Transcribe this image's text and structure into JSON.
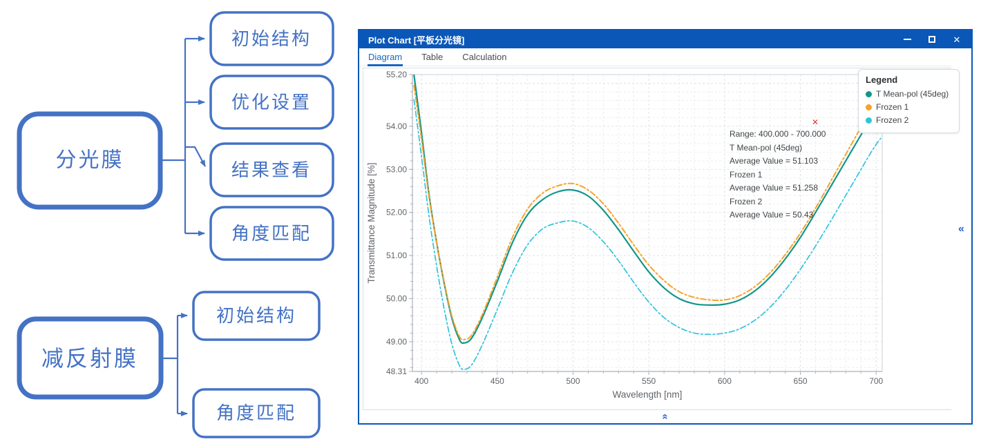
{
  "flowchart": {
    "groups": [
      {
        "root": "分光膜",
        "children": [
          "初始结构",
          "优化设置",
          "结果查看",
          "角度匹配"
        ]
      },
      {
        "root": "减反射膜",
        "children": [
          "初始结构",
          "角度匹配"
        ]
      }
    ],
    "accent_color": "#4472C4"
  },
  "window": {
    "title": "Plot Chart [平板分光镜]",
    "tabs": [
      {
        "label": "Diagram",
        "active": true
      },
      {
        "label": "Table",
        "active": false
      },
      {
        "label": "Calculation",
        "active": false
      }
    ],
    "title_bar_color": "#0B57B8",
    "active_tab_color": "#1565C0",
    "icons": {
      "close_glyph": "✕",
      "collapse_left_glyph": "«",
      "collapse_up_glyph": "«",
      "annotation_close_glyph": "✕"
    }
  },
  "chart_data": {
    "type": "line",
    "xlabel": "Wavelength [nm]",
    "ylabel": "Transmittance Magnitude [%]",
    "xlim": [
      394,
      704
    ],
    "ylim": [
      48.31,
      55.2
    ],
    "x_ticks": [
      400,
      450,
      500,
      550,
      600,
      650,
      700
    ],
    "x_minor_step": 10,
    "y_ticks": [
      48.31,
      49,
      50,
      51,
      52,
      53,
      54,
      55.2
    ],
    "y_tick_labels": [
      "48.31",
      "49.00",
      "50.00",
      "51.00",
      "52.00",
      "53.00",
      "54.00",
      "55.20"
    ],
    "y_minor_step": 0.2,
    "grid": "dashed",
    "legend": {
      "title": "Legend",
      "position": "top-right",
      "entries": [
        "T Mean-pol (45deg)",
        "Frozen 1",
        "Frozen 2"
      ]
    },
    "annotation": {
      "lines": [
        "Range: 400.000 - 700.000",
        "T Mean-pol (45deg)",
        "Average Value = 51.103",
        "Frozen 1",
        "Average Value = 51.258",
        "Frozen 2",
        "Average Value = 50.43"
      ],
      "close_color": "#E2362C"
    },
    "series": [
      {
        "name": "T Mean-pol (45deg)",
        "color": "#12968A",
        "style": "solid",
        "width": 2.2,
        "points": [
          [
            395,
            55.2
          ],
          [
            400,
            53.85
          ],
          [
            405,
            52.4
          ],
          [
            410,
            51.3
          ],
          [
            415,
            50.35
          ],
          [
            420,
            49.55
          ],
          [
            425,
            49.05
          ],
          [
            428,
            48.97
          ],
          [
            433,
            49.08
          ],
          [
            440,
            49.55
          ],
          [
            450,
            50.4
          ],
          [
            460,
            51.3
          ],
          [
            470,
            51.95
          ],
          [
            480,
            52.3
          ],
          [
            490,
            52.48
          ],
          [
            500,
            52.52
          ],
          [
            510,
            52.38
          ],
          [
            520,
            52.05
          ],
          [
            530,
            51.6
          ],
          [
            540,
            51.1
          ],
          [
            550,
            50.62
          ],
          [
            560,
            50.25
          ],
          [
            570,
            50.0
          ],
          [
            580,
            49.88
          ],
          [
            590,
            49.85
          ],
          [
            600,
            49.87
          ],
          [
            610,
            49.97
          ],
          [
            620,
            50.18
          ],
          [
            630,
            50.5
          ],
          [
            640,
            50.92
          ],
          [
            650,
            51.42
          ],
          [
            660,
            52.0
          ],
          [
            670,
            52.6
          ],
          [
            680,
            53.2
          ],
          [
            690,
            53.8
          ],
          [
            695,
            54.08
          ],
          [
            700,
            54.35
          ],
          [
            703,
            54.5
          ]
        ]
      },
      {
        "name": "Frozen 1",
        "color": "#F6A32B",
        "style": "dash-dot",
        "width": 2.0,
        "points": [
          [
            395,
            54.95
          ],
          [
            400,
            53.7
          ],
          [
            405,
            52.35
          ],
          [
            410,
            51.3
          ],
          [
            415,
            50.38
          ],
          [
            420,
            49.6
          ],
          [
            425,
            49.12
          ],
          [
            428,
            49.05
          ],
          [
            433,
            49.15
          ],
          [
            440,
            49.62
          ],
          [
            450,
            50.5
          ],
          [
            460,
            51.42
          ],
          [
            470,
            52.08
          ],
          [
            480,
            52.45
          ],
          [
            490,
            52.62
          ],
          [
            500,
            52.67
          ],
          [
            510,
            52.52
          ],
          [
            520,
            52.2
          ],
          [
            530,
            51.75
          ],
          [
            540,
            51.25
          ],
          [
            550,
            50.78
          ],
          [
            560,
            50.42
          ],
          [
            570,
            50.16
          ],
          [
            580,
            50.03
          ],
          [
            590,
            49.97
          ],
          [
            600,
            49.97
          ],
          [
            610,
            50.07
          ],
          [
            620,
            50.28
          ],
          [
            630,
            50.6
          ],
          [
            640,
            51.02
          ],
          [
            650,
            51.52
          ],
          [
            660,
            52.1
          ],
          [
            670,
            52.72
          ],
          [
            680,
            53.35
          ],
          [
            690,
            53.98
          ],
          [
            695,
            54.3
          ],
          [
            700,
            54.6
          ],
          [
            703,
            54.78
          ]
        ]
      },
      {
        "name": "Frozen 2",
        "color": "#30C3DC",
        "style": "dash-dot",
        "width": 1.7,
        "points": [
          [
            395,
            54.62
          ],
          [
            400,
            53.3
          ],
          [
            405,
            51.9
          ],
          [
            410,
            50.75
          ],
          [
            415,
            49.75
          ],
          [
            420,
            48.95
          ],
          [
            425,
            48.45
          ],
          [
            428,
            48.36
          ],
          [
            433,
            48.46
          ],
          [
            440,
            48.92
          ],
          [
            450,
            49.75
          ],
          [
            460,
            50.6
          ],
          [
            470,
            51.25
          ],
          [
            480,
            51.62
          ],
          [
            490,
            51.76
          ],
          [
            500,
            51.8
          ],
          [
            510,
            51.65
          ],
          [
            520,
            51.32
          ],
          [
            530,
            50.88
          ],
          [
            540,
            50.38
          ],
          [
            550,
            49.92
          ],
          [
            560,
            49.56
          ],
          [
            570,
            49.33
          ],
          [
            580,
            49.2
          ],
          [
            590,
            49.17
          ],
          [
            600,
            49.2
          ],
          [
            610,
            49.3
          ],
          [
            620,
            49.5
          ],
          [
            630,
            49.8
          ],
          [
            640,
            50.2
          ],
          [
            650,
            50.68
          ],
          [
            660,
            51.22
          ],
          [
            670,
            51.8
          ],
          [
            680,
            52.4
          ],
          [
            690,
            53.0
          ],
          [
            695,
            53.3
          ],
          [
            700,
            53.58
          ],
          [
            703,
            53.72
          ]
        ]
      }
    ]
  }
}
